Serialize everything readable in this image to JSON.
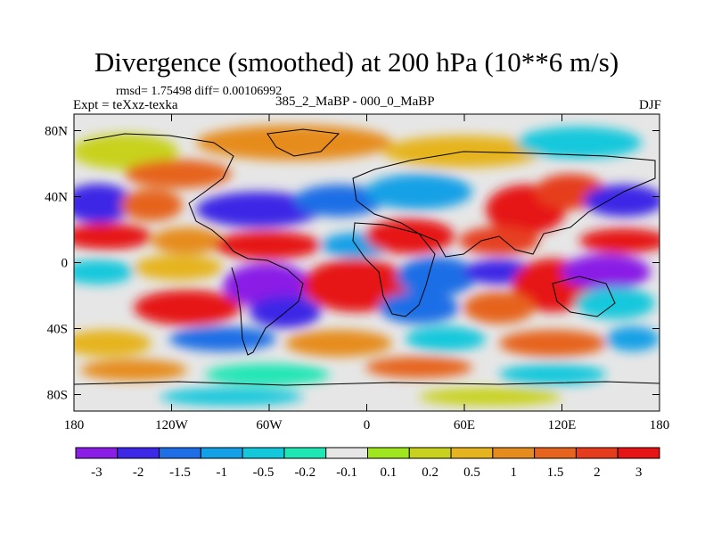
{
  "header": {
    "title": "Divergence (smoothed) at 200 hPa (10**6 m/s)",
    "rmsd_line": "rmsd= 1.75498 diff= 0.00106992",
    "experiment": "Expt = teXxz-texka",
    "comparison": "385_2_MaBP - 000_0_MaBP",
    "season": "DJF"
  },
  "chart_data": {
    "type": "heatmap",
    "title": "Divergence (smoothed) at 200 hPa (10**6 m/s)",
    "subtitle": "385_2_MaBP - 000_0_MaBP",
    "season": "DJF",
    "xlabel": "",
    "ylabel": "",
    "xlim": [
      -180,
      180
    ],
    "ylim": [
      -90,
      90
    ],
    "x_ticks": [
      {
        "value": -180,
        "label": "180"
      },
      {
        "value": -120,
        "label": "120W"
      },
      {
        "value": -60,
        "label": "60W"
      },
      {
        "value": 0,
        "label": "0"
      },
      {
        "value": 60,
        "label": "60E"
      },
      {
        "value": 120,
        "label": "120E"
      },
      {
        "value": 180,
        "label": "180"
      }
    ],
    "y_ticks": [
      {
        "value": 80,
        "label": "80N"
      },
      {
        "value": 40,
        "label": "40N"
      },
      {
        "value": 0,
        "label": "0"
      },
      {
        "value": -40,
        "label": "40S"
      },
      {
        "value": -80,
        "label": "80S"
      }
    ],
    "colorbar": {
      "labels": [
        "-3",
        "-2",
        "-1.5",
        "-1",
        "-0.5",
        "-0.2",
        "-0.1",
        "0.1",
        "0.2",
        "0.5",
        "1",
        "1.5",
        "2",
        "3"
      ],
      "colors": [
        "#8a1ee6",
        "#3c28e6",
        "#1e6ee6",
        "#14a0e6",
        "#14c8dc",
        "#1ee6b4",
        "#e6e6e6",
        "#a0e61e",
        "#c8d21e",
        "#e6b41e",
        "#e68c1e",
        "#e6641e",
        "#e63c1e",
        "#e61414"
      ]
    },
    "colors": {
      "strong_negative": "#8a1ee6",
      "near_zero": "#e6e6e6",
      "strong_positive": "#e61414",
      "coastline": "#000000"
    }
  }
}
